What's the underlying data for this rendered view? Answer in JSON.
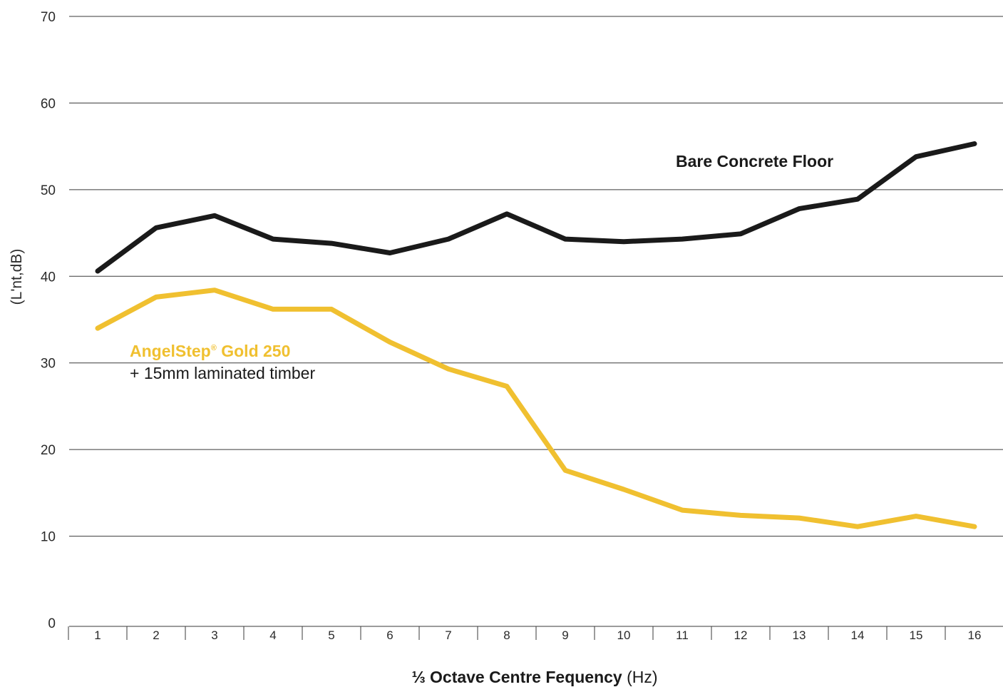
{
  "chart_data": {
    "type": "line",
    "title": "",
    "ylabel": "(L'nt,dB)",
    "xlabel_bold": "⅓ Octave Centre Fequency",
    "xlabel_rest": " (Hz)",
    "ylim": [
      0,
      70
    ],
    "yticks": [
      0,
      10,
      20,
      30,
      40,
      50,
      60,
      70
    ],
    "grid": true,
    "x": [
      1,
      2,
      3,
      4,
      5,
      6,
      7,
      8,
      9,
      10,
      11,
      12,
      13,
      14,
      15,
      16
    ],
    "series": [
      {
        "name": "Bare Concrete Floor",
        "color": "#1a1a1a",
        "values": [
          40.6,
          45.6,
          47.0,
          44.3,
          43.8,
          42.7,
          44.3,
          47.2,
          44.3,
          44.0,
          44.3,
          44.9,
          47.8,
          48.9,
          53.8,
          55.3
        ]
      },
      {
        "name": "AngelStep",
        "name_mark": "®",
        "name_suffix": " Gold 250",
        "subtitle": "+ 15mm laminated timber",
        "color": "#f0c030",
        "values": [
          34.0,
          37.6,
          38.4,
          36.2,
          36.2,
          32.4,
          29.3,
          27.3,
          17.6,
          15.4,
          13.0,
          12.4,
          12.1,
          11.1,
          12.3,
          11.1
        ]
      }
    ]
  }
}
